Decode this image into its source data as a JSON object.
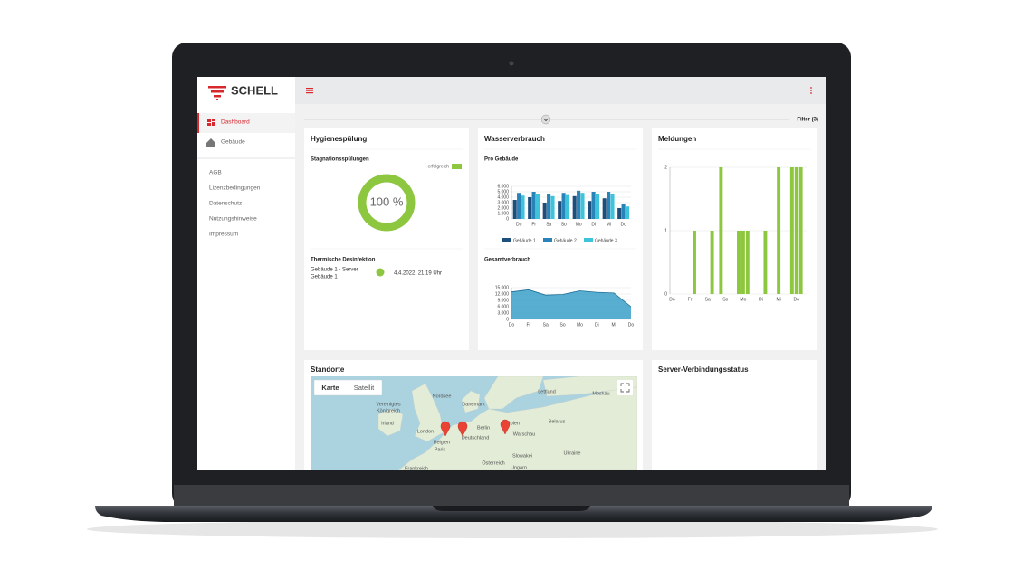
{
  "sidebar": {
    "logo": "SCHELL",
    "nav": [
      "Dashboard",
      "Gebäude"
    ],
    "links": [
      "AGB",
      "Lizenzbedingungen",
      "Datenschutz",
      "Nutzungshinweise",
      "Impressum"
    ]
  },
  "filter": "Filter (3)",
  "hygiene": {
    "title": "Hygienespülung",
    "subtitle": "Stagnationsspülungen",
    "legend": "erfolgreich",
    "color": "#8dc63f",
    "percent": 100,
    "percent_label": "100 %",
    "disinfection_title": "Thermische Desinfektion",
    "row": {
      "building": "Gebäude 1 - Server",
      "sub": "Gebäude 1",
      "date": "4.4.2022, 21:19 Uhr"
    }
  },
  "water_title": "Wasserverbrauch",
  "messages_title": "Meldungen",
  "chart_data": [
    {
      "type": "bar",
      "title": "Pro Gebäude",
      "categories": [
        "Do",
        "Fr",
        "Sa",
        "So",
        "Mo",
        "Di",
        "Mi",
        "Do"
      ],
      "series": [
        {
          "name": "Gebäude 1",
          "color": "#1d4f7c",
          "values": [
            3500,
            4000,
            3000,
            3300,
            4200,
            3300,
            3800,
            2000
          ]
        },
        {
          "name": "Gebäude 2",
          "color": "#2a83b8",
          "values": [
            4800,
            5000,
            4500,
            4800,
            5200,
            5000,
            5000,
            2800
          ]
        },
        {
          "name": "Gebäude 3",
          "color": "#3fc3db",
          "values": [
            4300,
            4500,
            4200,
            4400,
            4800,
            4500,
            4600,
            2300
          ]
        }
      ],
      "ylim": [
        0,
        6000
      ],
      "yticks": [
        0,
        {
          "value": 1000,
          "label": "1.000"
        },
        {
          "value": 2000,
          "label": "2.000"
        },
        {
          "value": 3000,
          "label": "3.000"
        },
        {
          "value": 4000,
          "label": "4.000"
        },
        {
          "value": 5000,
          "label": "5.000"
        },
        {
          "value": 6000,
          "label": "6.000"
        }
      ],
      "grid": true
    },
    {
      "type": "area",
      "title": "Gesamtverbrauch",
      "categories": [
        "Do",
        "Fr",
        "Sa",
        "So",
        "Mo",
        "Di",
        "Mi",
        "Do"
      ],
      "values": [
        13000,
        14000,
        11500,
        11800,
        13500,
        12800,
        12500,
        6000
      ],
      "color": "#3aa0c8",
      "ylim": [
        0,
        15000
      ],
      "yticks": [
        0,
        {
          "value": 3000,
          "label": "3.000"
        },
        {
          "value": 6000,
          "label": "6.000"
        },
        {
          "value": 9000,
          "label": "9.000"
        },
        {
          "value": 12000,
          "label": "12.000"
        },
        {
          "value": 15000,
          "label": "15.000"
        }
      ],
      "grid": true
    },
    {
      "type": "bar",
      "categories": [
        "Do",
        null,
        null,
        null,
        "Fr",
        null,
        null,
        null,
        "Sa",
        null,
        null,
        null,
        "So",
        null,
        null,
        null,
        "Mo",
        null,
        null,
        null,
        "Di",
        null,
        null,
        null,
        "Mi",
        null,
        null,
        null,
        "Do",
        null,
        null
      ],
      "values": [
        0,
        0,
        0,
        0,
        0,
        1,
        0,
        0,
        0,
        1,
        0,
        2,
        0,
        0,
        0,
        1,
        1,
        1,
        0,
        0,
        0,
        1,
        0,
        0,
        2,
        0,
        0,
        2,
        2,
        2,
        0
      ],
      "color": "#8dc63f",
      "ylim": [
        0,
        2
      ],
      "yticks": [
        0,
        1,
        2
      ],
      "grid": true
    }
  ],
  "map": {
    "title": "Standorte",
    "buttons": [
      "Karte",
      "Satellit"
    ],
    "labels": [
      "Nordsee",
      "Danemark",
      "Lettland",
      "Moskau",
      "Irland",
      "Vereinigtes",
      "Königreich",
      "London",
      "Belgien",
      "Paris",
      "Berlin",
      "Deutschland",
      "Polen",
      "Warschau",
      "Belarus",
      "Ukraine",
      "Slowakei",
      "Österreich",
      "Ungarn",
      "Frankreich"
    ]
  },
  "server_title": "Server-Verbindungsstatus"
}
